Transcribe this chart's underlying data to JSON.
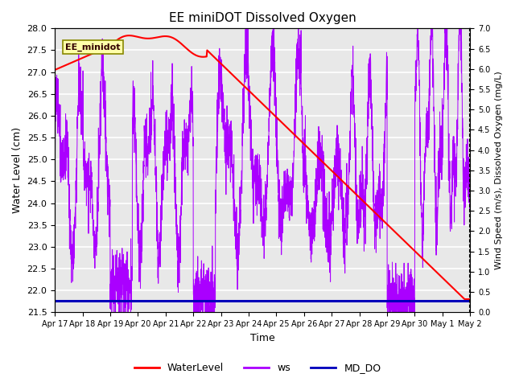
{
  "title": "EE miniDOT Dissolved Oxygen",
  "xlabel": "Time",
  "ylabel_left": "Water Level (cm)",
  "ylabel_right": "Wind Speed (m/s), Dissolved Oxygen (mg/L)",
  "annotation": "EE_minidot",
  "left_ylim": [
    21.5,
    28.0
  ],
  "right_ylim": [
    0.0,
    7.0
  ],
  "left_yticks": [
    21.5,
    22.0,
    22.5,
    23.0,
    23.5,
    24.0,
    24.5,
    25.0,
    25.5,
    26.0,
    26.5,
    27.0,
    27.5,
    28.0
  ],
  "right_yticks": [
    0.0,
    0.5,
    1.0,
    1.5,
    2.0,
    2.5,
    3.0,
    3.5,
    4.0,
    4.5,
    5.0,
    5.5,
    6.0,
    6.5,
    7.0
  ],
  "colors": {
    "waterlevel": "#FF0000",
    "ws": "#AA00FF",
    "md_do": "#0000BB",
    "background": "#E8E8E8",
    "annotation_bg": "#FFFFAA",
    "annotation_edge": "#888800"
  },
  "legend_labels": [
    "WaterLevel",
    "ws",
    "MD_DO"
  ],
  "x_tick_labels": [
    "Apr 17",
    "Apr 18",
    "Apr 19",
    "Apr 20",
    "Apr 21",
    "Apr 22",
    "Apr 23",
    "Apr 24",
    "Apr 25",
    "Apr 26",
    "Apr 27",
    "Apr 28",
    "Apr 29",
    "Apr 30",
    "May 1",
    "May 2"
  ],
  "n_days": 15,
  "figsize": [
    6.4,
    4.8
  ],
  "dpi": 100
}
